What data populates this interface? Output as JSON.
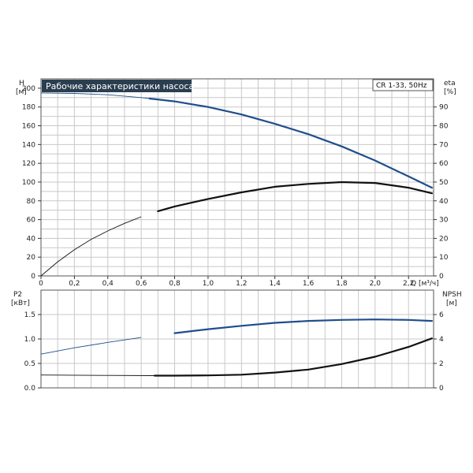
{
  "chart_data": [
    {
      "type": "line",
      "title": "Рабочие характеристики насоса",
      "model_label": "CR 1-33, 50Hz",
      "x_axis": {
        "label": "Q [м³/ч]",
        "range": [
          0,
          2.35
        ],
        "ticks": [
          "0",
          "0,2",
          "0,4",
          "0,6",
          "0,8",
          "1,0",
          "1,2",
          "1,4",
          "1,6",
          "1,8",
          "2,0",
          "2,2"
        ]
      },
      "y_axis_left": {
        "label_line1": "H",
        "label_line2": "[м]",
        "range": [
          0,
          210
        ],
        "ticks": [
          "0",
          "20",
          "40",
          "60",
          "80",
          "100",
          "120",
          "140",
          "160",
          "180",
          "200"
        ]
      },
      "y_axis_right": {
        "label_line1": "eta",
        "label_line2": "[%]",
        "range": [
          0,
          105
        ],
        "ticks": [
          "0",
          "10",
          "20",
          "30",
          "40",
          "50",
          "60",
          "70",
          "80",
          "90"
        ]
      },
      "grid": true,
      "series": [
        {
          "axis": "left",
          "color": "#1f4e8c",
          "thin_until": 0.65,
          "x": [
            0,
            0.2,
            0.4,
            0.6,
            0.65,
            0.8,
            1.0,
            1.2,
            1.4,
            1.6,
            1.8,
            2.0,
            2.2,
            2.34
          ],
          "y": [
            195,
            194.5,
            193,
            190,
            189,
            186,
            180,
            172,
            162,
            151,
            138,
            123,
            106,
            94
          ]
        },
        {
          "axis": "right",
          "color": "#111111",
          "thin_until": 0.65,
          "x": [
            0,
            0.1,
            0.2,
            0.3,
            0.4,
            0.5,
            0.6,
            0.7,
            0.8,
            1.0,
            1.2,
            1.4,
            1.6,
            1.8,
            2.0,
            2.2,
            2.34
          ],
          "y": [
            0,
            7.5,
            14,
            19.5,
            24,
            28,
            31.5,
            34.5,
            37,
            41,
            44.5,
            47.5,
            49,
            50,
            49.5,
            47,
            44
          ]
        }
      ]
    },
    {
      "type": "line",
      "x_axis": {
        "range": [
          0,
          2.35
        ]
      },
      "y_axis_left": {
        "label_line1": "P2",
        "label_line2": "[кВт]",
        "range": [
          0,
          2.0
        ],
        "ticks": [
          "0.0",
          "0.5",
          "1.0",
          "1.5"
        ]
      },
      "y_axis_right": {
        "label_line1": "NPSH",
        "label_line2": "[м]",
        "range": [
          0,
          8
        ],
        "ticks": [
          "0",
          "2",
          "4",
          "6"
        ]
      },
      "grid": true,
      "series": [
        {
          "axis": "left",
          "color": "#1f4e8c",
          "thin_until": 0.65,
          "x": [
            0,
            0.2,
            0.4,
            0.6,
            0.8,
            1.0,
            1.2,
            1.4,
            1.6,
            1.8,
            2.0,
            2.2,
            2.34
          ],
          "y": [
            0.69,
            0.82,
            0.93,
            1.03,
            1.12,
            1.2,
            1.27,
            1.33,
            1.37,
            1.39,
            1.4,
            1.39,
            1.37
          ]
        },
        {
          "axis": "right",
          "color": "#111111",
          "thin_until": 0.68,
          "x": [
            0,
            0.4,
            0.68,
            0.8,
            1.0,
            1.2,
            1.4,
            1.6,
            1.8,
            2.0,
            2.2,
            2.34
          ],
          "y": [
            1.05,
            1.02,
            1.0,
            1.0,
            1.02,
            1.08,
            1.25,
            1.5,
            1.95,
            2.55,
            3.35,
            4.05
          ]
        }
      ]
    }
  ]
}
